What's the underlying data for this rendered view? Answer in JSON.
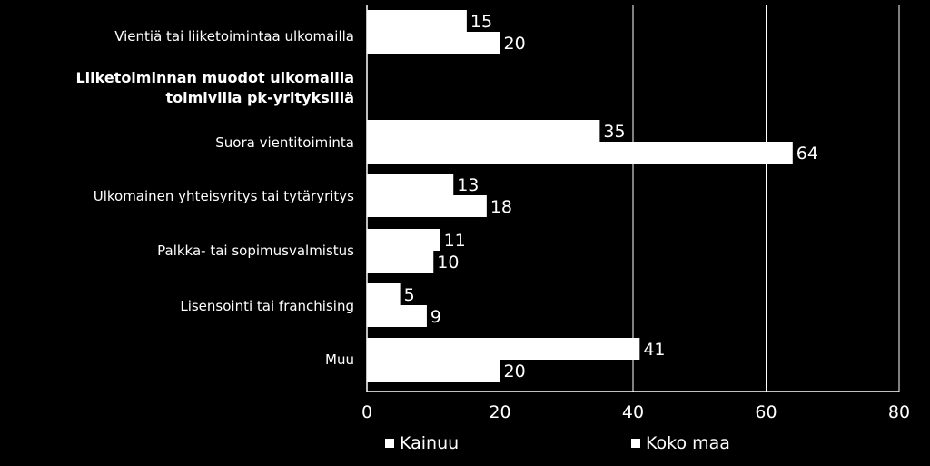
{
  "chart_data": {
    "type": "bar",
    "orientation": "horizontal",
    "title": "",
    "categories": [
      "Vientiä tai liiketoimintaa ulkomailla",
      "Liiketoiminnan muodot ulkomailla toimivilla pk-yrityksillä",
      "Suora vientitoiminta",
      "Ulkomainen yhteisyritys tai tytäryritys",
      "Palkka- tai sopimusvalmistus",
      "Lisensointi tai franchising",
      "Muu"
    ],
    "series": [
      {
        "name": "Kainuu",
        "values": [
          15,
          null,
          35,
          13,
          11,
          5,
          41
        ]
      },
      {
        "name": "Koko maa",
        "values": [
          20,
          null,
          64,
          18,
          10,
          9,
          20
        ]
      }
    ],
    "xlim": [
      0,
      80
    ],
    "xticks": [
      "0",
      "20",
      "40",
      "60",
      "80"
    ],
    "grid": true,
    "legend_position": "bottom",
    "colors": {
      "background": "#000000",
      "bar": "#ffffff",
      "text": "#ffffff"
    }
  },
  "labels": {
    "cat0": "Vientiä tai liiketoimintaa ulkomailla",
    "heading": "Liiketoiminnan muodot ulkomailla toimivilla pk-yrityksillä",
    "cat2": "Suora vientitoiminta",
    "cat3": "Ulkomainen yhteisyritys tai tytäryritys",
    "cat4": "Palkka- tai sopimusvalmistus",
    "cat5": "Lisensointi tai franchising",
    "cat6": "Muu"
  },
  "legend": {
    "kainuu": "Kainuu",
    "koko_maa": "Koko maa"
  }
}
